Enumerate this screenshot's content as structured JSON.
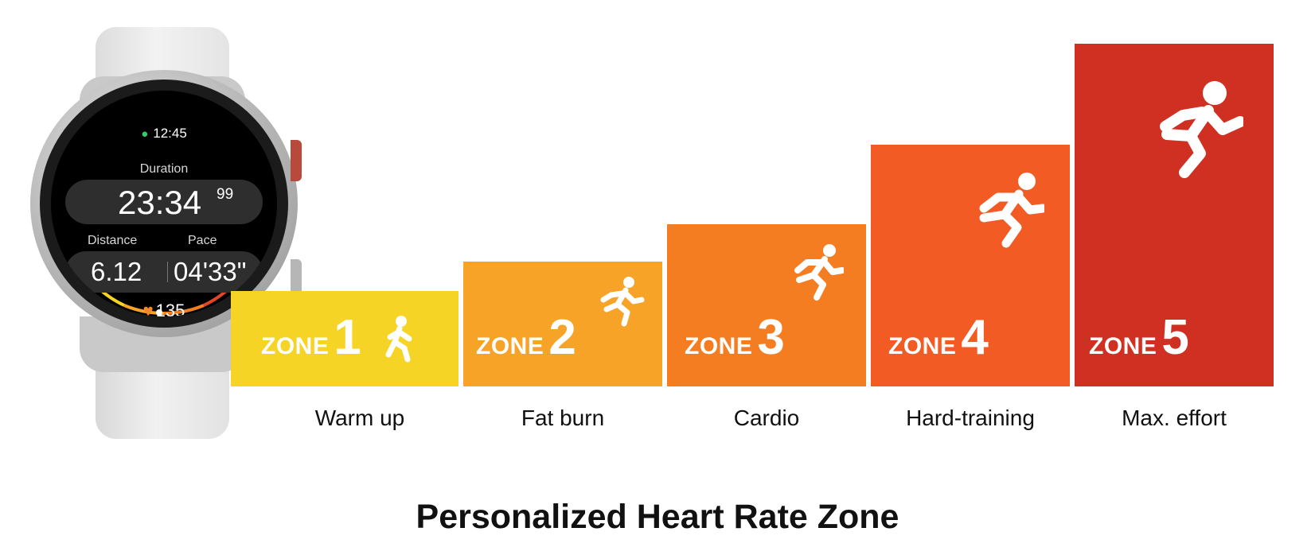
{
  "watch": {
    "time": "12:45",
    "duration_label": "Duration",
    "duration_main": "23:34",
    "duration_hundredths": "99",
    "distance_label": "Distance",
    "pace_label": "Pace",
    "distance_value": "6.12",
    "pace_value": "04'33\"",
    "heart_rate": "135"
  },
  "zones": [
    {
      "word": "ZONE",
      "number": "1",
      "label": "Warm up",
      "color": "#f5d425",
      "icon": "walking-person-icon"
    },
    {
      "word": "ZONE",
      "number": "2",
      "label": "Fat burn",
      "color": "#f6a328",
      "icon": "jogging-person-icon"
    },
    {
      "word": "ZONE",
      "number": "3",
      "label": "Cardio",
      "color": "#f47d22",
      "icon": "running-person-icon"
    },
    {
      "word": "ZONE",
      "number": "4",
      "label": "Hard-training",
      "color": "#f25b23",
      "icon": "fast-running-person-icon"
    },
    {
      "word": "ZONE",
      "number": "5",
      "label": "Max. effort",
      "color": "#cf3021",
      "icon": "sprinting-person-icon"
    }
  ],
  "title": "Personalized Heart Rate Zone"
}
